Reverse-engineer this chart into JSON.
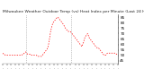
{
  "title": "Milwaukee Weather Outdoor Temp (vs) Heat Index per Minute (Last 24 Hours)",
  "background_color": "#ffffff",
  "line_color": "#ff0000",
  "grid_color": "#888888",
  "ymin": 42,
  "ymax": 88,
  "yticks": [
    45,
    50,
    55,
    60,
    65,
    70,
    75,
    80,
    85
  ],
  "figsize": [
    1.6,
    0.87
  ],
  "dpi": 100,
  "x_values": [
    0,
    1,
    2,
    3,
    4,
    5,
    6,
    7,
    8,
    9,
    10,
    11,
    12,
    13,
    14,
    15,
    16,
    17,
    18,
    19,
    20,
    21,
    22,
    23,
    24,
    25,
    26,
    27,
    28,
    29,
    30,
    31,
    32,
    33,
    34,
    35,
    36,
    37,
    38,
    39,
    40,
    41,
    42,
    43,
    44,
    45,
    46,
    47,
    48,
    49,
    50,
    51,
    52,
    53,
    54,
    55,
    56,
    57,
    58,
    59,
    60,
    61,
    62,
    63,
    64,
    65,
    66,
    67,
    68,
    69,
    70,
    71,
    72,
    73,
    74,
    75,
    76,
    77,
    78,
    79,
    80,
    81,
    82,
    83,
    84,
    85,
    86,
    87,
    88,
    89,
    90,
    91,
    92,
    93,
    94,
    95,
    96,
    97,
    98,
    99,
    100,
    101,
    102,
    103,
    104,
    105,
    106,
    107,
    108,
    109,
    110,
    111,
    112,
    113,
    114,
    115,
    116,
    117,
    118,
    119,
    120,
    121,
    122,
    123,
    124,
    125,
    126,
    127,
    128,
    129,
    130,
    131,
    132,
    133,
    134,
    135,
    136,
    137,
    138,
    139,
    140
  ],
  "y_values": [
    52,
    51,
    51,
    50,
    50,
    50,
    50,
    50,
    50,
    50,
    50,
    50,
    50,
    50,
    50,
    50,
    50,
    50,
    50,
    50,
    50,
    50,
    50,
    50,
    51,
    51,
    52,
    53,
    53,
    52,
    51,
    51,
    51,
    51,
    51,
    50,
    50,
    50,
    50,
    50,
    50,
    50,
    49,
    49,
    49,
    49,
    49,
    49,
    50,
    51,
    52,
    53,
    54,
    55,
    56,
    58,
    62,
    67,
    72,
    75,
    78,
    80,
    81,
    82,
    83,
    84,
    85,
    85,
    84,
    83,
    82,
    81,
    80,
    79,
    78,
    76,
    75,
    74,
    73,
    72,
    72,
    72,
    72,
    71,
    70,
    69,
    68,
    67,
    66,
    65,
    64,
    63,
    62,
    61,
    60,
    59,
    58,
    60,
    62,
    65,
    67,
    68,
    69,
    70,
    68,
    66,
    65,
    64,
    63,
    62,
    61,
    60,
    59,
    58,
    57,
    57,
    57,
    56,
    55,
    54,
    53,
    52,
    51,
    50,
    50,
    50,
    51,
    52,
    52,
    52,
    52,
    52,
    52,
    52,
    52,
    52,
    52,
    52,
    51,
    51,
    51
  ],
  "vline_positions": [
    28,
    83
  ],
  "title_fontsize": 3.2,
  "tick_fontsize": 3.0,
  "n_xticks": 28
}
